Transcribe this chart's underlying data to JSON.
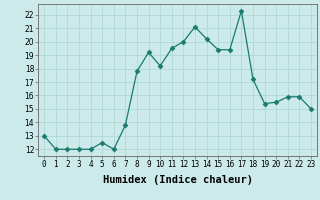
{
  "x": [
    0,
    1,
    2,
    3,
    4,
    5,
    6,
    7,
    8,
    9,
    10,
    11,
    12,
    13,
    14,
    15,
    16,
    17,
    18,
    19,
    20,
    21,
    22,
    23
  ],
  "y": [
    13,
    12,
    12,
    12,
    12,
    12.5,
    12,
    13.8,
    17.8,
    19.2,
    18.2,
    19.5,
    20.0,
    21.1,
    20.2,
    19.4,
    19.4,
    22.3,
    17.2,
    15.4,
    15.5,
    15.9,
    15.9,
    15.0
  ],
  "line_color": "#1a7a6e",
  "marker": "D",
  "marker_size": 2.5,
  "bg_color": "#cceaea",
  "grid_color": "#aad4d4",
  "xlabel": "Humidex (Indice chaleur)",
  "xlim": [
    -0.5,
    23.5
  ],
  "ylim": [
    11.5,
    22.8
  ],
  "yticks": [
    12,
    13,
    14,
    15,
    16,
    17,
    18,
    19,
    20,
    21,
    22
  ],
  "xtick_labels": [
    "0",
    "1",
    "2",
    "3",
    "4",
    "5",
    "6",
    "7",
    "8",
    "9",
    "10",
    "11",
    "12",
    "13",
    "14",
    "15",
    "16",
    "17",
    "18",
    "19",
    "20",
    "21",
    "22",
    "23"
  ],
  "tick_fontsize": 5.5,
  "xlabel_fontsize": 7.5
}
